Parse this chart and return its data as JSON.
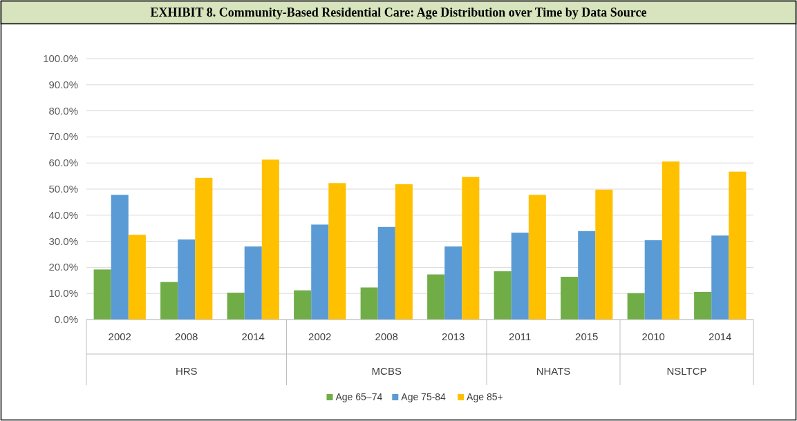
{
  "chart_data": {
    "type": "bar",
    "title": "EXHIBIT 8. Community-Based Residential Care: Age Distribution over Time by Data Source",
    "categories": [
      "2002",
      "2008",
      "2014",
      "2002",
      "2008",
      "2013",
      "2011",
      "2015",
      "2010",
      "2014"
    ],
    "annotations": [
      "HRS",
      "MCBS",
      "NHATS",
      "NSLTCP"
    ],
    "series": [
      {
        "name": "Age 65–74",
        "color": "#70ad47",
        "values": [
          19.2,
          14.4,
          10.3,
          11.2,
          12.3,
          17.3,
          18.5,
          16.4,
          10.1,
          10.6
        ]
      },
      {
        "name": "Age 75-84",
        "color": "#5b9bd5",
        "values": [
          47.8,
          30.7,
          28.0,
          36.4,
          35.5,
          28.0,
          33.3,
          33.9,
          30.4,
          32.2
        ]
      },
      {
        "name": "Age 85+",
        "color": "#ffc000",
        "values": [
          32.5,
          54.3,
          61.3,
          52.3,
          51.9,
          54.7,
          47.8,
          49.8,
          60.6,
          56.7
        ]
      }
    ],
    "ylim": [
      0,
      100
    ],
    "yticks": [
      {
        "value": 0,
        "label": "0.0%"
      },
      {
        "value": 10,
        "label": "10.0%"
      },
      {
        "value": 20,
        "label": "20.0%"
      },
      {
        "value": 30,
        "label": "30.0%"
      },
      {
        "value": 40,
        "label": "40.0%"
      },
      {
        "value": 50,
        "label": "50.0%"
      },
      {
        "value": 60,
        "label": "60.0%"
      },
      {
        "value": 70,
        "label": "70.0%"
      },
      {
        "value": 80,
        "label": "80.0%"
      },
      {
        "value": 90,
        "label": "90.0%"
      },
      {
        "value": 100,
        "label": "100.0%"
      }
    ],
    "grid": "y",
    "legend": "bottom"
  }
}
